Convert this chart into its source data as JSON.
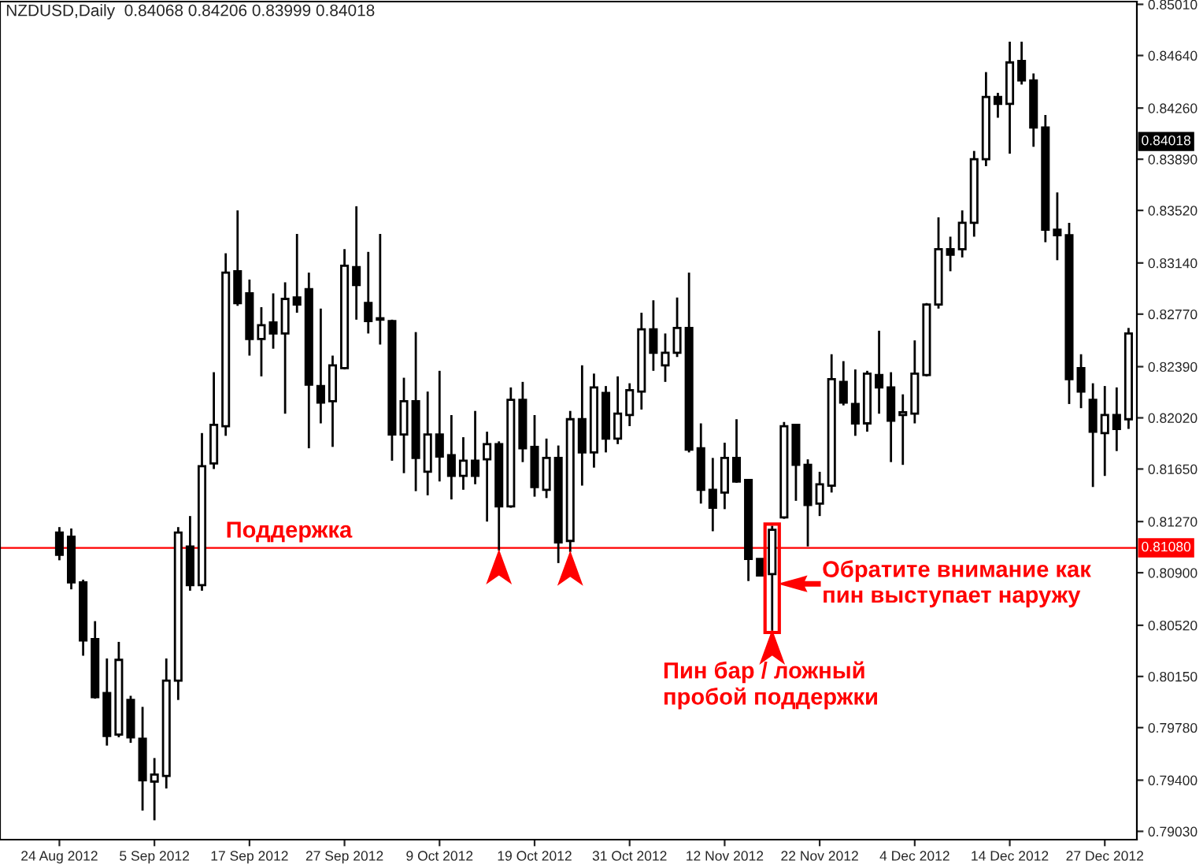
{
  "chart_data": {
    "type": "candlestick",
    "title": "NZDUSD,Daily  0.84068 0.84206 0.83999 0.84018",
    "categories": [
      "24 Aug 2012",
      null,
      null,
      null,
      null,
      null,
      null,
      null,
      "5 Sep 2012",
      null,
      null,
      null,
      null,
      null,
      null,
      null,
      "17 Sep 2012",
      null,
      null,
      null,
      null,
      null,
      null,
      null,
      "27 Sep 2012",
      null,
      null,
      null,
      null,
      null,
      null,
      null,
      "9 Oct 2012",
      null,
      null,
      null,
      null,
      null,
      null,
      null,
      "19 Oct 2012",
      null,
      null,
      null,
      null,
      null,
      null,
      null,
      "31 Oct 2012",
      null,
      null,
      null,
      null,
      null,
      null,
      null,
      "12 Nov 2012",
      null,
      null,
      null,
      null,
      null,
      null,
      null,
      "22 Nov 2012",
      null,
      null,
      null,
      null,
      null,
      null,
      null,
      "4 Dec 2012",
      null,
      null,
      null,
      null,
      null,
      null,
      null,
      "14 Dec 2012",
      null,
      null,
      null,
      null,
      null,
      null,
      null,
      "27 Dec 2012",
      null,
      null
    ],
    "ohlc": [
      [
        0.8119,
        0.8123,
        0.8099,
        0.8103
      ],
      [
        0.8116,
        0.8122,
        0.8078,
        0.8083
      ],
      [
        0.8083,
        0.8085,
        0.803,
        0.8041
      ],
      [
        0.8042,
        0.8055,
        0.7999,
        0.8
      ],
      [
        0.8003,
        0.8028,
        0.7965,
        0.7972
      ],
      [
        0.7973,
        0.804,
        0.7971,
        0.8027
      ],
      [
        0.7998,
        0.8001,
        0.7967,
        0.7971
      ],
      [
        0.797,
        0.7993,
        0.7918,
        0.794
      ],
      [
        0.7939,
        0.7956,
        0.7911,
        0.7944
      ],
      [
        0.7943,
        0.8028,
        0.7934,
        0.8012
      ],
      [
        0.8012,
        0.8123,
        0.7998,
        0.8119
      ],
      [
        0.8109,
        0.8131,
        0.8077,
        0.8081
      ],
      [
        0.8081,
        0.8191,
        0.8077,
        0.8167
      ],
      [
        0.8169,
        0.8235,
        0.8165,
        0.8197
      ],
      [
        0.8196,
        0.8321,
        0.8189,
        0.8307
      ],
      [
        0.8308,
        0.8352,
        0.8283,
        0.8285
      ],
      [
        0.8292,
        0.8302,
        0.8247,
        0.8259
      ],
      [
        0.8259,
        0.8282,
        0.8232,
        0.8269
      ],
      [
        0.8271,
        0.8292,
        0.8252,
        0.8263
      ],
      [
        0.8263,
        0.83,
        0.8205,
        0.8288
      ],
      [
        0.8289,
        0.8335,
        0.8278,
        0.8284
      ],
      [
        0.8295,
        0.8307,
        0.818,
        0.8226
      ],
      [
        0.8225,
        0.8281,
        0.8198,
        0.8213
      ],
      [
        0.8214,
        0.8247,
        0.8181,
        0.824
      ],
      [
        0.8238,
        0.8324,
        0.8237,
        0.8312
      ],
      [
        0.8311,
        0.8355,
        0.8273,
        0.8298
      ],
      [
        0.8285,
        0.8322,
        0.8263,
        0.8272
      ],
      [
        0.8274,
        0.8335,
        0.8255,
        0.8273
      ],
      [
        0.8272,
        0.8273,
        0.8171,
        0.819
      ],
      [
        0.819,
        0.8231,
        0.8162,
        0.8214
      ],
      [
        0.8214,
        0.8264,
        0.8149,
        0.8173
      ],
      [
        0.8163,
        0.8221,
        0.8146,
        0.819
      ],
      [
        0.819,
        0.8236,
        0.8156,
        0.8174
      ],
      [
        0.8175,
        0.8204,
        0.8143,
        0.816
      ],
      [
        0.816,
        0.8188,
        0.815,
        0.8171
      ],
      [
        0.8171,
        0.8207,
        0.8154,
        0.816
      ],
      [
        0.8172,
        0.8192,
        0.8127,
        0.8183
      ],
      [
        0.8183,
        0.8185,
        0.8106,
        0.8138
      ],
      [
        0.8138,
        0.8224,
        0.8137,
        0.8215
      ],
      [
        0.8215,
        0.8228,
        0.817,
        0.818
      ],
      [
        0.8181,
        0.8204,
        0.8145,
        0.8152
      ],
      [
        0.815,
        0.8187,
        0.8144,
        0.8173
      ],
      [
        0.8173,
        0.8182,
        0.8097,
        0.8112
      ],
      [
        0.8113,
        0.8207,
        0.8105,
        0.8201
      ],
      [
        0.8201,
        0.824,
        0.8153,
        0.8177
      ],
      [
        0.8177,
        0.8234,
        0.8166,
        0.8224
      ],
      [
        0.822,
        0.8225,
        0.8177,
        0.8187
      ],
      [
        0.8187,
        0.8232,
        0.8183,
        0.8205
      ],
      [
        0.8204,
        0.8227,
        0.8196,
        0.8222
      ],
      [
        0.8221,
        0.8278,
        0.8208,
        0.8266
      ],
      [
        0.8266,
        0.8287,
        0.8236,
        0.8249
      ],
      [
        0.824,
        0.8263,
        0.8228,
        0.8249
      ],
      [
        0.8249,
        0.8289,
        0.8246,
        0.8267
      ],
      [
        0.8267,
        0.8307,
        0.8177,
        0.8179
      ],
      [
        0.818,
        0.8198,
        0.814,
        0.815
      ],
      [
        0.815,
        0.8173,
        0.812,
        0.8137
      ],
      [
        0.8148,
        0.8184,
        0.8136,
        0.8173
      ],
      [
        0.8173,
        0.8201,
        0.8155,
        0.8156
      ],
      [
        0.8157,
        0.8157,
        0.8084,
        0.81
      ],
      [
        0.81,
        0.81,
        0.8088,
        0.8088
      ],
      [
        0.8089,
        0.8124,
        0.8048,
        0.8121
      ],
      [
        0.813,
        0.8199,
        0.8129,
        0.8196
      ],
      [
        0.8197,
        0.8197,
        0.8142,
        0.8168
      ],
      [
        0.8168,
        0.8172,
        0.8109,
        0.8139
      ],
      [
        0.814,
        0.8163,
        0.8131,
        0.8154
      ],
      [
        0.8153,
        0.8248,
        0.8148,
        0.823
      ],
      [
        0.8228,
        0.8243,
        0.8211,
        0.8213
      ],
      [
        0.8212,
        0.8237,
        0.8189,
        0.8198
      ],
      [
        0.8198,
        0.8236,
        0.8192,
        0.8234
      ],
      [
        0.8233,
        0.8265,
        0.8205,
        0.8224
      ],
      [
        0.8224,
        0.8235,
        0.817,
        0.82
      ],
      [
        0.8204,
        0.8219,
        0.8168,
        0.8206
      ],
      [
        0.8205,
        0.8258,
        0.8198,
        0.8234
      ],
      [
        0.8233,
        0.8285,
        0.8232,
        0.8284
      ],
      [
        0.8284,
        0.8347,
        0.8281,
        0.8324
      ],
      [
        0.8324,
        0.8333,
        0.8308,
        0.832
      ],
      [
        0.8324,
        0.8352,
        0.8318,
        0.8343
      ],
      [
        0.8343,
        0.8395,
        0.8333,
        0.8389
      ],
      [
        0.8389,
        0.8452,
        0.8384,
        0.8434
      ],
      [
        0.8434,
        0.8437,
        0.8419,
        0.8429
      ],
      [
        0.8429,
        0.8474,
        0.8393,
        0.8459
      ],
      [
        0.846,
        0.8474,
        0.8443,
        0.8446
      ],
      [
        0.8446,
        0.8451,
        0.8398,
        0.8412
      ],
      [
        0.8412,
        0.8421,
        0.8329,
        0.8338
      ],
      [
        0.8338,
        0.8365,
        0.8316,
        0.8334
      ],
      [
        0.8334,
        0.8343,
        0.8212,
        0.823
      ],
      [
        0.8238,
        0.8248,
        0.8209,
        0.8221
      ],
      [
        0.8215,
        0.8227,
        0.8152,
        0.8192
      ],
      [
        0.8191,
        0.8225,
        0.816,
        0.8204
      ],
      [
        0.8204,
        0.8224,
        0.8178,
        0.8194
      ],
      [
        0.8201,
        0.8267,
        0.8194,
        0.8263
      ]
    ],
    "ylim": [
      0.7897,
      0.8503
    ],
    "yticks": [
      {
        "value": 0.8501,
        "label": "0.85010"
      },
      {
        "value": 0.8464,
        "label": "0.84640"
      },
      {
        "value": 0.8426,
        "label": "0.84260"
      },
      {
        "value": 0.8389,
        "label": "0.83890"
      },
      {
        "value": 0.8352,
        "label": "0.83520"
      },
      {
        "value": 0.8314,
        "label": "0.83140"
      },
      {
        "value": 0.8277,
        "label": "0.82770"
      },
      {
        "value": 0.8239,
        "label": "0.82390"
      },
      {
        "value": 0.8202,
        "label": "0.82020"
      },
      {
        "value": 0.8165,
        "label": "0.81650"
      },
      {
        "value": 0.8127,
        "label": "0.81270"
      },
      {
        "value": 0.809,
        "label": "0.80900"
      },
      {
        "value": 0.8052,
        "label": "0.80520"
      },
      {
        "value": 0.8015,
        "label": "0.80150"
      },
      {
        "value": 0.7978,
        "label": "0.79780"
      },
      {
        "value": 0.794,
        "label": "0.79400"
      },
      {
        "value": 0.7903,
        "label": "0.79030"
      }
    ],
    "ref_lines": [
      {
        "axis": "y",
        "value": 0.8108,
        "label": "Поддержка",
        "color": "#ff0000"
      }
    ],
    "annotations": [
      "0.84018",
      "0.81080",
      "Обратите внимание как\nпин выступает наружу",
      "Пин бар / ложный\nпробой поддержки"
    ],
    "grid": false
  }
}
